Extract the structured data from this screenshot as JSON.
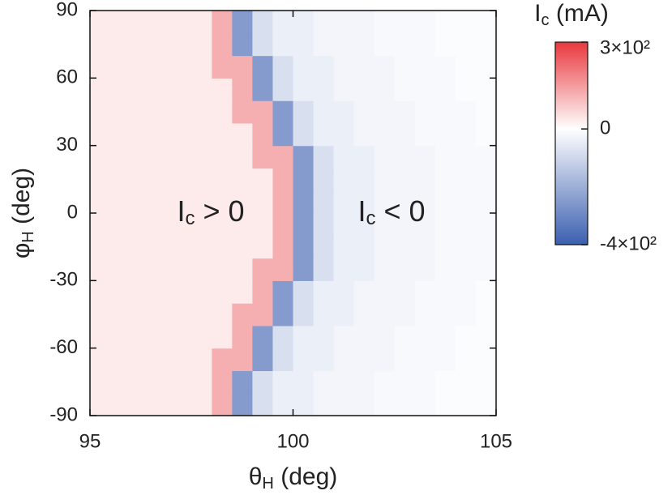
{
  "chart_data": {
    "type": "heatmap",
    "x_label": {
      "base": "θ",
      "sub": "H",
      "unit": " (deg)"
    },
    "y_label": {
      "base": "φ",
      "sub": "H",
      "unit": " (deg)"
    },
    "colorbar_label": {
      "base": "I",
      "sub": "c",
      "unit": " (mA)"
    },
    "annotations": [
      {
        "base": "I",
        "sub": "c",
        "text": " > 0"
      },
      {
        "base": "I",
        "sub": "c",
        "text": " < 0"
      }
    ],
    "xlim": [
      95,
      105
    ],
    "xticks": [
      95,
      100,
      105
    ],
    "ylim": [
      -90,
      90
    ],
    "yticks": [
      -90,
      -60,
      -30,
      0,
      30,
      60,
      90
    ],
    "clim": [
      -400,
      300
    ],
    "cticks": [
      {
        "value": 300,
        "label": "3×10²"
      },
      0,
      {
        "value": -400,
        "label": "-4×10²"
      }
    ],
    "colormap": {
      "low": "#3b5fb0",
      "mid": "#ffffff",
      "high": "#e8383d"
    },
    "x": [
      95.25,
      95.75,
      96.25,
      96.75,
      97.25,
      97.75,
      98.25,
      98.75,
      99.25,
      99.75,
      100.25,
      100.75,
      101.25,
      101.75,
      102.25,
      102.75,
      103.25,
      103.75,
      104.25,
      104.75
    ],
    "y": [
      -85,
      -75,
      -65,
      -55,
      -45,
      -35,
      -25,
      -15,
      -5,
      5,
      15,
      25,
      35,
      45,
      55,
      65,
      75,
      85
    ],
    "z": [
      [
        30,
        30,
        30,
        30,
        30,
        30,
        120,
        -250,
        -80,
        -40,
        -40,
        -25,
        -25,
        -25,
        -15,
        -15,
        -15,
        -8,
        -8,
        -8
      ],
      [
        30,
        30,
        30,
        30,
        30,
        30,
        120,
        -250,
        -80,
        -40,
        -40,
        -25,
        -25,
        -25,
        -15,
        -15,
        -15,
        -8,
        -8,
        -8
      ],
      [
        30,
        30,
        30,
        30,
        30,
        30,
        120,
        120,
        -250,
        -80,
        -40,
        -40,
        -25,
        -25,
        -25,
        -15,
        -15,
        -15,
        -8,
        -8
      ],
      [
        30,
        30,
        30,
        30,
        30,
        30,
        30,
        120,
        -250,
        -80,
        -40,
        -40,
        -25,
        -25,
        -25,
        -15,
        -15,
        -15,
        -8,
        -8
      ],
      [
        30,
        30,
        30,
        30,
        30,
        30,
        30,
        120,
        120,
        -250,
        -80,
        -40,
        -40,
        -25,
        -25,
        -25,
        -15,
        -15,
        -15,
        -8
      ],
      [
        30,
        30,
        30,
        30,
        30,
        30,
        30,
        30,
        120,
        -250,
        -80,
        -40,
        -40,
        -25,
        -25,
        -25,
        -15,
        -15,
        -15,
        -8
      ],
      [
        30,
        30,
        30,
        30,
        30,
        30,
        30,
        30,
        120,
        120,
        -250,
        -80,
        -40,
        -40,
        -25,
        -25,
        -25,
        -15,
        -15,
        -15
      ],
      [
        30,
        30,
        30,
        30,
        30,
        30,
        30,
        30,
        30,
        120,
        -250,
        -80,
        -40,
        -40,
        -25,
        -25,
        -25,
        -15,
        -15,
        -15
      ],
      [
        30,
        30,
        30,
        30,
        30,
        30,
        30,
        30,
        30,
        120,
        -250,
        -80,
        -40,
        -40,
        -25,
        -25,
        -25,
        -15,
        -15,
        -15
      ],
      [
        30,
        30,
        30,
        30,
        30,
        30,
        30,
        30,
        30,
        120,
        -250,
        -80,
        -40,
        -40,
        -25,
        -25,
        -25,
        -15,
        -15,
        -15
      ],
      [
        30,
        30,
        30,
        30,
        30,
        30,
        30,
        30,
        30,
        120,
        -250,
        -80,
        -40,
        -40,
        -25,
        -25,
        -25,
        -15,
        -15,
        -15
      ],
      [
        30,
        30,
        30,
        30,
        30,
        30,
        30,
        30,
        120,
        120,
        -250,
        -80,
        -40,
        -40,
        -25,
        -25,
        -25,
        -15,
        -15,
        -15
      ],
      [
        30,
        30,
        30,
        30,
        30,
        30,
        30,
        30,
        120,
        -250,
        -80,
        -40,
        -40,
        -25,
        -25,
        -25,
        -15,
        -15,
        -15,
        -8
      ],
      [
        30,
        30,
        30,
        30,
        30,
        30,
        30,
        120,
        120,
        -250,
        -80,
        -40,
        -40,
        -25,
        -25,
        -25,
        -15,
        -15,
        -15,
        -8
      ],
      [
        30,
        30,
        30,
        30,
        30,
        30,
        30,
        120,
        -250,
        -80,
        -40,
        -40,
        -25,
        -25,
        -25,
        -15,
        -15,
        -15,
        -8,
        -8
      ],
      [
        30,
        30,
        30,
        30,
        30,
        30,
        120,
        120,
        -250,
        -80,
        -40,
        -40,
        -25,
        -25,
        -25,
        -15,
        -15,
        -15,
        -8,
        -8
      ],
      [
        30,
        30,
        30,
        30,
        30,
        30,
        120,
        -250,
        -80,
        -40,
        -40,
        -25,
        -25,
        -25,
        -15,
        -15,
        -15,
        -8,
        -8,
        -8
      ],
      [
        30,
        30,
        30,
        30,
        30,
        30,
        120,
        -250,
        -80,
        -40,
        -40,
        -25,
        -25,
        -25,
        -15,
        -15,
        -15,
        -8,
        -8,
        -8
      ]
    ]
  }
}
